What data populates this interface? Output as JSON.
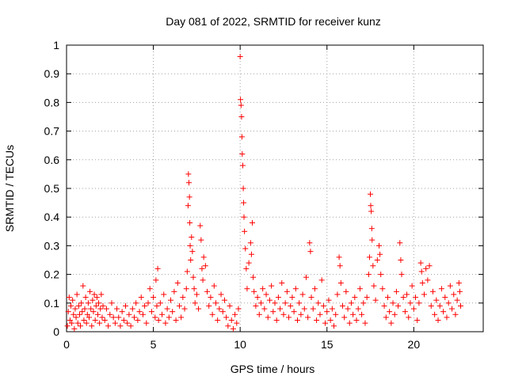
{
  "chart_data": {
    "type": "scatter",
    "title": "Day 081 of 2022, SRMTID for receiver kunz",
    "xlabel": "GPS time / hours",
    "ylabel": "SRMTID / TECUs",
    "xlim": [
      0,
      24
    ],
    "ylim": [
      0,
      1
    ],
    "xticks": [
      0,
      5,
      10,
      15,
      20
    ],
    "xtick_labels": [
      "0",
      "5",
      "10",
      "15",
      "20"
    ],
    "yticks": [
      0,
      0.1,
      0.2,
      0.3,
      0.4,
      0.5,
      0.6,
      0.7,
      0.8,
      0.9,
      1
    ],
    "ytick_labels": [
      "0",
      "0.1",
      "0.2",
      "0.3",
      "0.4",
      "0.5",
      "0.6",
      "0.7",
      "0.8",
      "0.9",
      "1"
    ],
    "grid": true,
    "marker": "+",
    "color": "#ff0000",
    "series": [
      {
        "name": "SRMTID",
        "points": [
          [
            0.05,
            0.02
          ],
          [
            0.1,
            0.07
          ],
          [
            0.15,
            0.12
          ],
          [
            0.2,
            0.04
          ],
          [
            0.25,
            0.09
          ],
          [
            0.3,
            0.03
          ],
          [
            0.35,
            0.11
          ],
          [
            0.4,
            0.06
          ],
          [
            0.45,
            0.01
          ],
          [
            0.5,
            0.08
          ],
          [
            0.55,
            0.05
          ],
          [
            0.6,
            0.13
          ],
          [
            0.65,
            0.03
          ],
          [
            0.7,
            0.09
          ],
          [
            0.75,
            0.06
          ],
          [
            0.8,
            0.02
          ],
          [
            0.85,
            0.1
          ],
          [
            0.9,
            0.07
          ],
          [
            0.95,
            0.16
          ],
          [
            1.0,
            0.04
          ],
          [
            1.05,
            0.08
          ],
          [
            1.1,
            0.12
          ],
          [
            1.15,
            0.03
          ],
          [
            1.2,
            0.06
          ],
          [
            1.25,
            0.1
          ],
          [
            1.3,
            0.05
          ],
          [
            1.35,
            0.14
          ],
          [
            1.4,
            0.08
          ],
          [
            1.45,
            0.02
          ],
          [
            1.5,
            0.11
          ],
          [
            1.55,
            0.07
          ],
          [
            1.6,
            0.13
          ],
          [
            1.65,
            0.04
          ],
          [
            1.7,
            0.09
          ],
          [
            1.75,
            0.12
          ],
          [
            1.8,
            0.06
          ],
          [
            1.85,
            0.1
          ],
          [
            1.9,
            0.03
          ],
          [
            1.95,
            0.08
          ],
          [
            2.0,
            0.13
          ],
          [
            2.05,
            0.05
          ],
          [
            2.1,
            0.09
          ],
          [
            2.2,
            0.04
          ],
          [
            2.3,
            0.08
          ],
          [
            2.4,
            0.02
          ],
          [
            2.5,
            0.06
          ],
          [
            2.6,
            0.1
          ],
          [
            2.7,
            0.05
          ],
          [
            2.8,
            0.03
          ],
          [
            2.9,
            0.08
          ],
          [
            3.0,
            0.05
          ],
          [
            3.1,
            0.02
          ],
          [
            3.2,
            0.07
          ],
          [
            3.3,
            0.04
          ],
          [
            3.4,
            0.09
          ],
          [
            3.5,
            0.03
          ],
          [
            3.6,
            0.06
          ],
          [
            3.7,
            0.02
          ],
          [
            3.8,
            0.08
          ],
          [
            3.9,
            0.05
          ],
          [
            4.0,
            0.1
          ],
          [
            4.1,
            0.04
          ],
          [
            4.2,
            0.07
          ],
          [
            4.3,
            0.12
          ],
          [
            4.4,
            0.06
          ],
          [
            4.5,
            0.09
          ],
          [
            4.6,
            0.03
          ],
          [
            4.7,
            0.1
          ],
          [
            4.8,
            0.15
          ],
          [
            4.9,
            0.07
          ],
          [
            5.0,
            0.12
          ],
          [
            5.1,
            0.05
          ],
          [
            5.15,
            0.18
          ],
          [
            5.2,
            0.09
          ],
          [
            5.25,
            0.22
          ],
          [
            5.3,
            0.04
          ],
          [
            5.4,
            0.1
          ],
          [
            5.5,
            0.06
          ],
          [
            5.6,
            0.13
          ],
          [
            5.7,
            0.03
          ],
          [
            5.8,
            0.08
          ],
          [
            5.9,
            0.05
          ],
          [
            6.0,
            0.11
          ],
          [
            6.1,
            0.07
          ],
          [
            6.2,
            0.14
          ],
          [
            6.3,
            0.04
          ],
          [
            6.4,
            0.17
          ],
          [
            6.5,
            0.09
          ],
          [
            6.6,
            0.05
          ],
          [
            6.7,
            0.12
          ],
          [
            6.8,
            0.08
          ],
          [
            6.9,
            0.15
          ],
          [
            6.95,
            0.21
          ],
          [
            7.0,
            0.44
          ],
          [
            7.02,
            0.55
          ],
          [
            7.05,
            0.52
          ],
          [
            7.08,
            0.47
          ],
          [
            7.1,
            0.38
          ],
          [
            7.12,
            0.3
          ],
          [
            7.15,
            0.25
          ],
          [
            7.2,
            0.33
          ],
          [
            7.25,
            0.28
          ],
          [
            7.3,
            0.19
          ],
          [
            7.35,
            0.15
          ],
          [
            7.4,
            0.1
          ],
          [
            7.5,
            0.13
          ],
          [
            7.6,
            0.08
          ],
          [
            7.7,
            0.37
          ],
          [
            7.75,
            0.32
          ],
          [
            7.8,
            0.22
          ],
          [
            7.85,
            0.18
          ],
          [
            7.9,
            0.26
          ],
          [
            8.0,
            0.23
          ],
          [
            8.1,
            0.14
          ],
          [
            8.2,
            0.09
          ],
          [
            8.3,
            0.12
          ],
          [
            8.4,
            0.06
          ],
          [
            8.5,
            0.16
          ],
          [
            8.6,
            0.1
          ],
          [
            8.7,
            0.04
          ],
          [
            8.8,
            0.08
          ],
          [
            8.9,
            0.13
          ],
          [
            9.0,
            0.07
          ],
          [
            9.1,
            0.11
          ],
          [
            9.2,
            0.05
          ],
          [
            9.3,
            0.02
          ],
          [
            9.4,
            0.09
          ],
          [
            9.5,
            0.04
          ],
          [
            9.6,
            0.01
          ],
          [
            9.7,
            0.06
          ],
          [
            9.8,
            0.03
          ],
          [
            9.9,
            0.08
          ],
          [
            10.0,
            0.96
          ],
          [
            10.02,
            0.81
          ],
          [
            10.05,
            0.79
          ],
          [
            10.08,
            0.75
          ],
          [
            10.1,
            0.68
          ],
          [
            10.12,
            0.62
          ],
          [
            10.15,
            0.58
          ],
          [
            10.18,
            0.5
          ],
          [
            10.2,
            0.45
          ],
          [
            10.22,
            0.4
          ],
          [
            10.25,
            0.35
          ],
          [
            10.3,
            0.29
          ],
          [
            10.35,
            0.22
          ],
          [
            10.4,
            0.15
          ],
          [
            10.5,
            0.24
          ],
          [
            10.6,
            0.31
          ],
          [
            10.65,
            0.27
          ],
          [
            10.7,
            0.38
          ],
          [
            10.75,
            0.19
          ],
          [
            10.8,
            0.14
          ],
          [
            10.9,
            0.09
          ],
          [
            11.0,
            0.12
          ],
          [
            11.1,
            0.06
          ],
          [
            11.2,
            0.1
          ],
          [
            11.3,
            0.15
          ],
          [
            11.4,
            0.08
          ],
          [
            11.5,
            0.13
          ],
          [
            11.6,
            0.05
          ],
          [
            11.7,
            0.11
          ],
          [
            11.8,
            0.16
          ],
          [
            11.9,
            0.07
          ],
          [
            12.0,
            0.1
          ],
          [
            12.1,
            0.04
          ],
          [
            12.2,
            0.12
          ],
          [
            12.3,
            0.08
          ],
          [
            12.4,
            0.17
          ],
          [
            12.5,
            0.06
          ],
          [
            12.6,
            0.1
          ],
          [
            12.7,
            0.14
          ],
          [
            12.8,
            0.05
          ],
          [
            12.9,
            0.09
          ],
          [
            13.0,
            0.12
          ],
          [
            13.1,
            0.07
          ],
          [
            13.2,
            0.15
          ],
          [
            13.3,
            0.04
          ],
          [
            13.4,
            0.1
          ],
          [
            13.5,
            0.06
          ],
          [
            13.6,
            0.13
          ],
          [
            13.7,
            0.08
          ],
          [
            13.8,
            0.19
          ],
          [
            13.9,
            0.05
          ],
          [
            14.0,
            0.31
          ],
          [
            14.05,
            0.28
          ],
          [
            14.1,
            0.12
          ],
          [
            14.2,
            0.08
          ],
          [
            14.3,
            0.15
          ],
          [
            14.4,
            0.04
          ],
          [
            14.5,
            0.1
          ],
          [
            14.6,
            0.06
          ],
          [
            14.7,
            0.18
          ],
          [
            14.8,
            0.09
          ],
          [
            14.9,
            0.03
          ],
          [
            15.0,
            0.07
          ],
          [
            15.1,
            0.11
          ],
          [
            15.2,
            0.04
          ],
          [
            15.3,
            0.08
          ],
          [
            15.4,
            0.02
          ],
          [
            15.5,
            0.06
          ],
          [
            15.6,
            0.13
          ],
          [
            15.7,
            0.26
          ],
          [
            15.75,
            0.23
          ],
          [
            15.8,
            0.17
          ],
          [
            15.9,
            0.09
          ],
          [
            16.0,
            0.05
          ],
          [
            16.1,
            0.14
          ],
          [
            16.2,
            0.08
          ],
          [
            16.3,
            0.03
          ],
          [
            16.4,
            0.1
          ],
          [
            16.5,
            0.06
          ],
          [
            16.6,
            0.12
          ],
          [
            16.7,
            0.04
          ],
          [
            16.8,
            0.08
          ],
          [
            16.9,
            0.15
          ],
          [
            17.0,
            0.06
          ],
          [
            17.1,
            0.1
          ],
          [
            17.2,
            0.03
          ],
          [
            17.3,
            0.12
          ],
          [
            17.4,
            0.2
          ],
          [
            17.45,
            0.26
          ],
          [
            17.5,
            0.48
          ],
          [
            17.52,
            0.44
          ],
          [
            17.55,
            0.42
          ],
          [
            17.58,
            0.36
          ],
          [
            17.6,
            0.32
          ],
          [
            17.65,
            0.23
          ],
          [
            17.7,
            0.16
          ],
          [
            17.8,
            0.11
          ],
          [
            17.9,
            0.25
          ],
          [
            18.0,
            0.3
          ],
          [
            18.05,
            0.27
          ],
          [
            18.1,
            0.2
          ],
          [
            18.2,
            0.15
          ],
          [
            18.3,
            0.09
          ],
          [
            18.4,
            0.05
          ],
          [
            18.5,
            0.12
          ],
          [
            18.6,
            0.07
          ],
          [
            18.7,
            0.03
          ],
          [
            18.8,
            0.1
          ],
          [
            18.9,
            0.06
          ],
          [
            19.0,
            0.14
          ],
          [
            19.1,
            0.09
          ],
          [
            19.2,
            0.31
          ],
          [
            19.25,
            0.25
          ],
          [
            19.3,
            0.2
          ],
          [
            19.4,
            0.12
          ],
          [
            19.5,
            0.07
          ],
          [
            19.6,
            0.13
          ],
          [
            19.7,
            0.05
          ],
          [
            19.8,
            0.1
          ],
          [
            19.9,
            0.16
          ],
          [
            20.0,
            0.08
          ],
          [
            20.1,
            0.12
          ],
          [
            20.2,
            0.04
          ],
          [
            20.3,
            0.1
          ],
          [
            20.4,
            0.24
          ],
          [
            20.45,
            0.21
          ],
          [
            20.5,
            0.17
          ],
          [
            20.6,
            0.13
          ],
          [
            20.7,
            0.22
          ],
          [
            20.8,
            0.18
          ],
          [
            20.9,
            0.23
          ],
          [
            21.0,
            0.09
          ],
          [
            21.1,
            0.14
          ],
          [
            21.2,
            0.06
          ],
          [
            21.3,
            0.11
          ],
          [
            21.4,
            0.04
          ],
          [
            21.5,
            0.09
          ],
          [
            21.6,
            0.15
          ],
          [
            21.7,
            0.07
          ],
          [
            21.8,
            0.12
          ],
          [
            21.9,
            0.05
          ],
          [
            22.0,
            0.1
          ],
          [
            22.1,
            0.16
          ],
          [
            22.2,
            0.08
          ],
          [
            22.3,
            0.13
          ],
          [
            22.4,
            0.06
          ],
          [
            22.5,
            0.11
          ],
          [
            22.6,
            0.17
          ],
          [
            22.65,
            0.14
          ],
          [
            22.7,
            0.09
          ]
        ]
      }
    ]
  }
}
